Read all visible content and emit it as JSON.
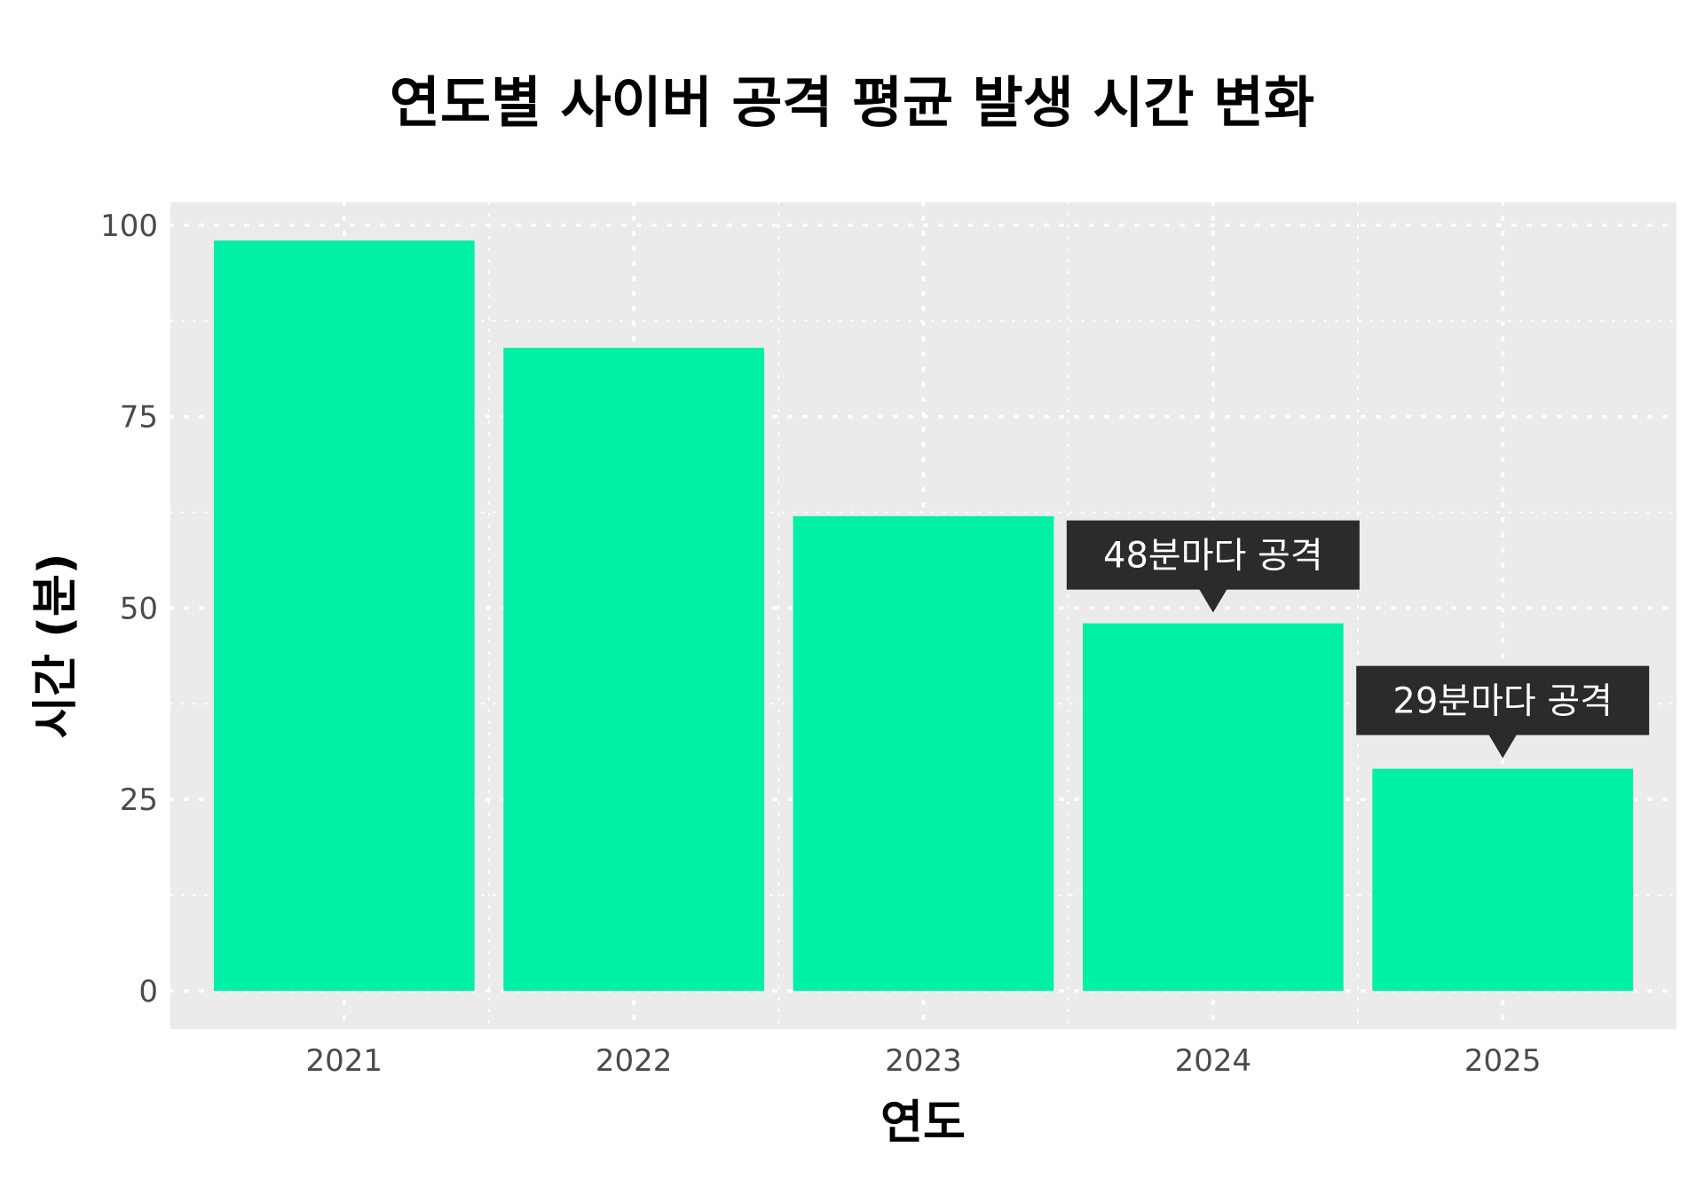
{
  "chart_data": {
    "type": "bar",
    "title": "연도별 사이버 공격 평균 발생 시간 변화",
    "xlabel": "연도",
    "ylabel": "시간 (분)",
    "categories": [
      "2021",
      "2022",
      "2023",
      "2024",
      "2025"
    ],
    "values": [
      98,
      84,
      62,
      48,
      29
    ],
    "ylim": [
      -5,
      103
    ],
    "yticks": [
      0,
      25,
      50,
      75,
      100
    ],
    "grid": true,
    "bar_color": "#00F0A5",
    "panel_background": "#EBEBEB",
    "annotations": [
      {
        "category": "2024",
        "value": 48,
        "text": "48분마다 공격"
      },
      {
        "category": "2025",
        "value": 29,
        "text": "29분마다 공격"
      }
    ],
    "annotation_background": "#2B2B2B"
  }
}
